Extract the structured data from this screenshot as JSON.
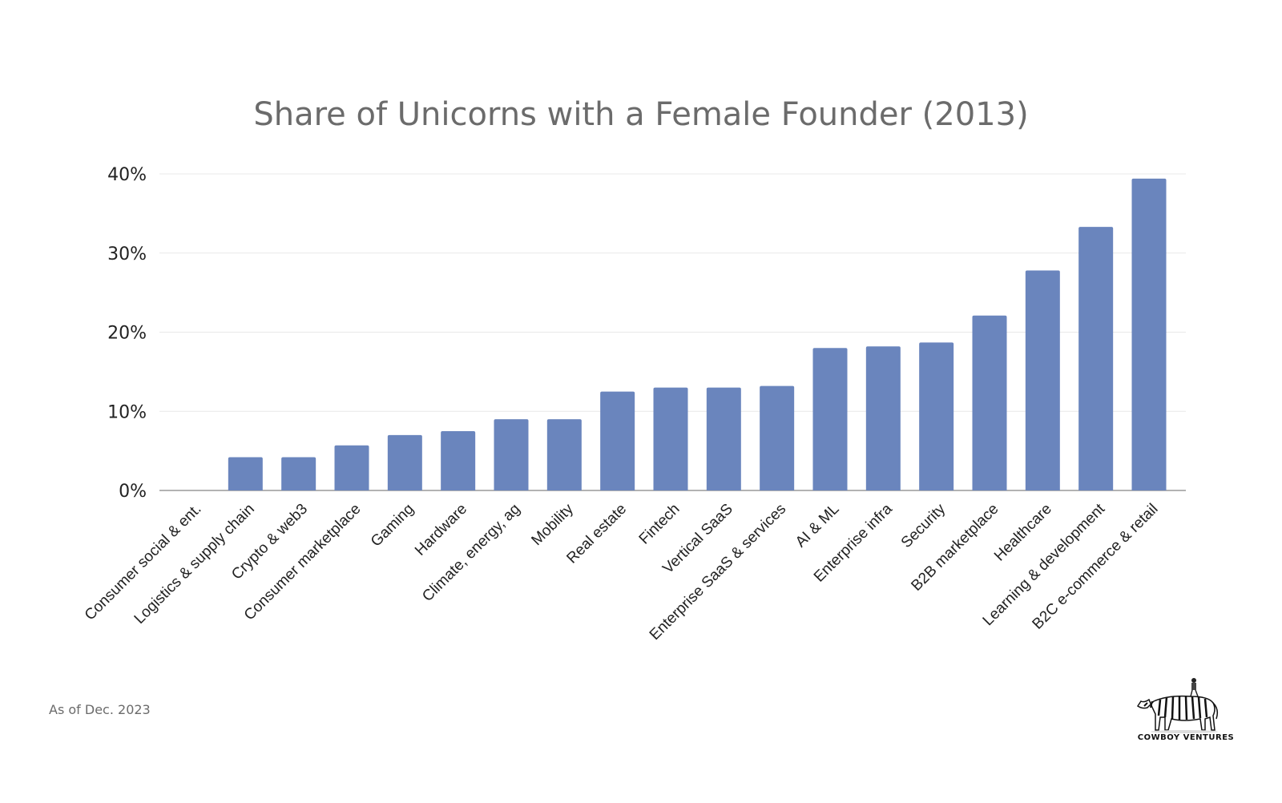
{
  "chart_data": {
    "type": "bar",
    "title": "Share of Unicorns with a Female Founder (2013)",
    "xlabel": "",
    "ylabel": "",
    "ylim": [
      0,
      40
    ],
    "yticks": [
      "0%",
      "10%",
      "20%",
      "30%",
      "40%"
    ],
    "grid": true,
    "bar_color": "#6a85bd",
    "categories": [
      "Consumer social & ent.",
      "Logistics & supply chain",
      "Crypto & web3",
      "Consumer marketplace",
      "Gaming",
      "Hardware",
      "Climate, energy, ag",
      "Mobility",
      "Real estate",
      "Fintech",
      "Vertical SaaS",
      "Enterprise SaaS & services",
      "AI & ML",
      "Enterprise infra",
      "Security",
      "B2B marketplace",
      "Healthcare",
      "Learning & development",
      "B2C e-commerce & retail"
    ],
    "values": [
      0,
      4.2,
      4.2,
      5.7,
      7.0,
      7.5,
      9.0,
      9.0,
      12.5,
      13.0,
      13.0,
      13.2,
      18.0,
      18.2,
      18.7,
      22.1,
      27.8,
      33.3,
      39.4
    ]
  },
  "footnote": "As of Dec. 2023",
  "logo": {
    "text": "COWBOY VENTURES",
    "icon": "zebra-rider-icon"
  }
}
